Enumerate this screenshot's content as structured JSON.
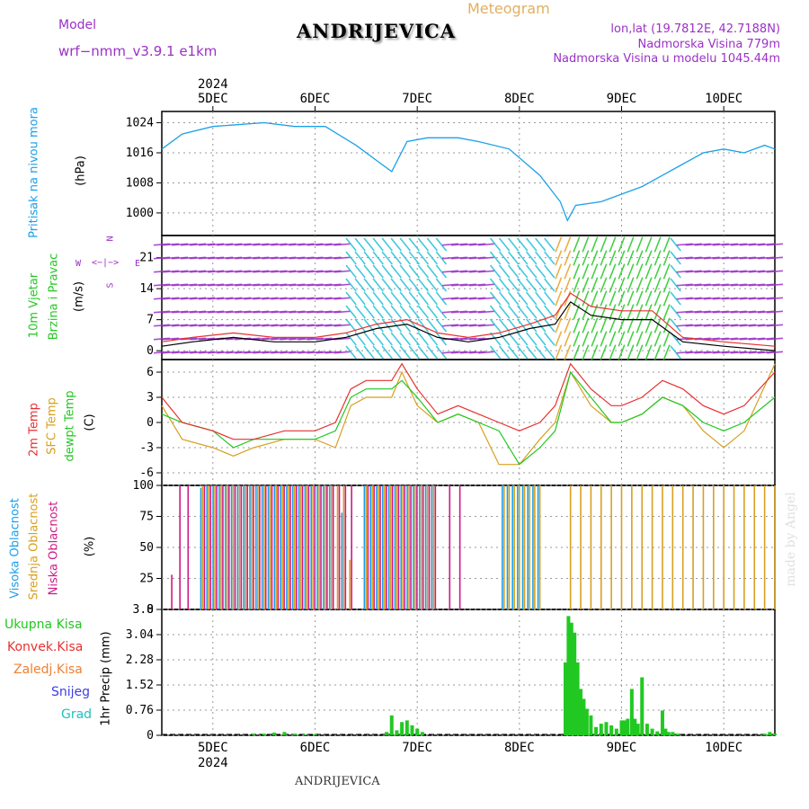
{
  "header": {
    "model_label": "Model",
    "model_name": "wrf−nmm_v3.9.1  e1km",
    "title": "ANDRIJEVICA",
    "meteogram_label": "Meteogram",
    "lonlat": "lon,lat (19.7812E, 42.7188N)",
    "elevation": "Nadmorska Visina 779m",
    "model_elevation": "Nadmorska Visina u modelu 1045.44m",
    "watermark": "made by Angel",
    "footer_title": "ANDRIJEVICA"
  },
  "time_axis": {
    "year": "2024",
    "days": [
      "5DEC",
      "6DEC",
      "7DEC",
      "8DEC",
      "9DEC",
      "10DEC"
    ]
  },
  "panel_labels": {
    "pressure": {
      "name": "Pritisak na nivou mora",
      "unit": "(hPa)"
    },
    "wind": {
      "name1": "10m Vjetar",
      "name2": "Brzina i Pravac",
      "unit": "(m/s)",
      "compass_n": "N",
      "compass_s": "S",
      "compass_w": "W",
      "compass_e": "E"
    },
    "temp": {
      "name1": "2m Temp",
      "name2": "SFC Temp",
      "name3": "dewpt Temp",
      "unit": "(C)"
    },
    "cloud": {
      "name1": "Visoka Oblacnost",
      "name2": "Srednja Oblacnost",
      "name3": "Niska Oblacnost",
      "unit": "(%)"
    },
    "precip": {
      "name1": "Ukupna Kisa",
      "name2": "Konvek.Kisa",
      "name3": "Zaledj.Kisa",
      "name4": "Snijeg",
      "name5": "Grad",
      "unit": "1hr Precip (mm)"
    }
  },
  "colors": {
    "pressure": "#1ca0e8",
    "wind_speed": "#000000",
    "wind_gust": "#e83030",
    "t2m": "#e83030",
    "tsfc": "#d8a020",
    "dewpt": "#22c822",
    "cloud_high": "#1ca0e8",
    "cloud_mid": "#d8a020",
    "cloud_low": "#cc1a88",
    "precip_total": "#22c822",
    "precip_conv": "#e83030",
    "precip_frz": "#f08030",
    "precip_snow": "#4040e0",
    "precip_grad": "#20c0c0",
    "label_pressure": "#1ca0e8",
    "label_wind": "#22c822",
    "label_model": "#9b30c8"
  },
  "chart_data": [
    {
      "type": "line",
      "title": "Pritisak na nivou mora",
      "ylabel": "(hPa)",
      "yticks": [
        "1000",
        "1008",
        "1016",
        "1024"
      ],
      "ylim": [
        994,
        1027
      ],
      "grid": true,
      "x": [
        4.5,
        4.7,
        5.0,
        5.5,
        5.8,
        6.1,
        6.4,
        6.6,
        6.75,
        6.9,
        7.1,
        7.4,
        7.6,
        7.9,
        8.2,
        8.4,
        8.47,
        8.55,
        8.8,
        9.0,
        9.2,
        9.4,
        9.6,
        9.8,
        10.0,
        10.2,
        10.4,
        10.5
      ],
      "series": [
        {
          "values": [
            1017,
            1021,
            1023,
            1024,
            1023,
            1023,
            1018,
            1014,
            1011,
            1019,
            1020,
            1020,
            1019,
            1017,
            1010,
            1003,
            998,
            1002,
            1003,
            1005,
            1007,
            1010,
            1013,
            1016,
            1017,
            1016,
            1018,
            1017
          ]
        }
      ]
    },
    {
      "type": "line",
      "title": "10m Vjetar Brzina i Pravac",
      "ylabel": "(m/s)",
      "yticks": [
        "0",
        "7",
        "14",
        "21"
      ],
      "ylim": [
        -2,
        26
      ],
      "grid": true,
      "x": [
        4.5,
        4.8,
        5.2,
        5.6,
        6.0,
        6.3,
        6.6,
        6.9,
        7.2,
        7.5,
        7.8,
        8.1,
        8.35,
        8.5,
        8.7,
        9.0,
        9.3,
        9.6,
        10.0,
        10.5
      ],
      "series": [
        {
          "values": [
            1,
            2,
            3,
            2,
            2,
            3,
            5,
            6,
            3,
            2,
            3,
            5,
            6,
            11,
            8,
            7,
            7,
            2,
            1,
            0
          ]
        },
        {
          "values": [
            2,
            3,
            4,
            3,
            3,
            4,
            6,
            7,
            4,
            3,
            4,
            6,
            8,
            13,
            10,
            9,
            9,
            3,
            2,
            1
          ]
        }
      ]
    },
    {
      "type": "line",
      "title": "Temp",
      "ylabel": "(C)",
      "yticks": [
        "-6",
        "-3",
        "0",
        "3",
        "6"
      ],
      "ylim": [
        -7.5,
        7.5
      ],
      "grid": true,
      "x": [
        4.5,
        4.7,
        5.0,
        5.2,
        5.4,
        5.7,
        6.0,
        6.2,
        6.35,
        6.5,
        6.75,
        6.85,
        7.0,
        7.2,
        7.4,
        7.6,
        7.8,
        8.0,
        8.2,
        8.35,
        8.5,
        8.7,
        8.9,
        9.0,
        9.2,
        9.4,
        9.6,
        9.8,
        10.0,
        10.2,
        10.5
      ],
      "series": [
        {
          "name": "2m Temp",
          "values": [
            3,
            0,
            -1,
            -2,
            -2,
            -1,
            -1,
            0,
            4,
            5,
            5,
            7,
            4,
            1,
            2,
            1,
            0,
            -1,
            0,
            2,
            7,
            4,
            2,
            2,
            3,
            5,
            4,
            2,
            1,
            2,
            6
          ]
        },
        {
          "name": "SFC Temp",
          "values": [
            2,
            -2,
            -3,
            -4,
            -3,
            -2,
            -2,
            -3,
            2,
            3,
            3,
            6,
            2,
            0,
            1,
            0,
            -5,
            -5,
            -2,
            0,
            6,
            2,
            0,
            0,
            1,
            3,
            2,
            -1,
            -3,
            -1,
            7
          ]
        },
        {
          "name": "dewpt Temp",
          "values": [
            1,
            0,
            -1,
            -3,
            -2,
            -2,
            -2,
            -1,
            3,
            4,
            4,
            5,
            3,
            0,
            1,
            0,
            -1,
            -5,
            -3,
            -1,
            6,
            3,
            0,
            0,
            1,
            3,
            2,
            0,
            -1,
            0,
            3
          ]
        }
      ]
    },
    {
      "type": "bar",
      "title": "Oblacnost",
      "ylabel": "(%)",
      "yticks": [
        "0",
        "25",
        "50",
        "75",
        "100"
      ],
      "ylim": [
        0,
        100
      ],
      "grid": true,
      "x": [
        4.58,
        4.66,
        4.74,
        4.9,
        4.96,
        5.02,
        5.08,
        5.14,
        5.2,
        5.26,
        5.32,
        5.38,
        5.44,
        5.5,
        5.56,
        5.62,
        5.68,
        5.74,
        5.8,
        5.86,
        5.92,
        5.98,
        6.04,
        6.1,
        6.16,
        6.22,
        6.28,
        6.34,
        6.5,
        6.56,
        6.62,
        6.68,
        6.74,
        6.8,
        6.86,
        6.92,
        6.98,
        7.04,
        7.1,
        7.16,
        7.3,
        7.4,
        7.5,
        7.85,
        7.9,
        7.95,
        8.0,
        8.05,
        8.1,
        8.15,
        8.2,
        8.5,
        8.6,
        8.7,
        8.8,
        8.9,
        9.0,
        9.1,
        9.2,
        9.3,
        9.4,
        9.5,
        9.6,
        9.7,
        9.8,
        9.9,
        10.0,
        10.1,
        10.2,
        10.3,
        10.4,
        10.5
      ],
      "series": [
        {
          "name": "Visoka Oblacnost",
          "values": [
            0,
            0,
            0,
            98,
            100,
            100,
            100,
            100,
            100,
            100,
            100,
            100,
            100,
            100,
            100,
            100,
            100,
            100,
            100,
            100,
            100,
            100,
            100,
            100,
            100,
            0,
            78,
            0,
            100,
            100,
            100,
            100,
            100,
            100,
            100,
            100,
            100,
            100,
            100,
            100,
            0,
            0,
            0,
            100,
            100,
            100,
            100,
            100,
            100,
            100,
            100,
            0,
            0,
            0,
            0,
            0,
            0,
            0,
            0,
            0,
            0,
            0,
            0,
            0,
            0,
            0,
            0,
            0,
            0,
            0,
            0,
            0
          ]
        },
        {
          "name": "Srednja Oblacnost",
          "values": [
            0,
            0,
            0,
            100,
            100,
            100,
            100,
            100,
            100,
            100,
            100,
            100,
            100,
            100,
            100,
            100,
            100,
            100,
            100,
            100,
            100,
            100,
            100,
            100,
            100,
            100,
            100,
            40,
            100,
            100,
            100,
            100,
            100,
            100,
            100,
            100,
            100,
            100,
            100,
            100,
            0,
            0,
            0,
            100,
            100,
            100,
            100,
            100,
            100,
            100,
            100,
            100,
            100,
            100,
            100,
            100,
            100,
            100,
            100,
            100,
            100,
            100,
            100,
            100,
            100,
            100,
            100,
            100,
            100,
            100,
            100,
            100
          ]
        },
        {
          "name": "Niska Oblacnost",
          "values": [
            28,
            100,
            100,
            100,
            100,
            100,
            100,
            100,
            100,
            100,
            100,
            100,
            100,
            100,
            100,
            100,
            100,
            100,
            100,
            100,
            100,
            100,
            100,
            100,
            100,
            100,
            100,
            100,
            100,
            100,
            100,
            100,
            100,
            100,
            100,
            100,
            100,
            100,
            100,
            100,
            100,
            100,
            0,
            0,
            0,
            0,
            0,
            0,
            0,
            0,
            0,
            0,
            0,
            0,
            0,
            0,
            0,
            0,
            0,
            0,
            0,
            0,
            0,
            0,
            0,
            0,
            0,
            0,
            0,
            0,
            0,
            0
          ]
        }
      ]
    },
    {
      "type": "bar",
      "title": "1hr Precip",
      "ylabel": "1hr Precip (mm)",
      "yticks": [
        "0",
        "0.76",
        "1.52",
        "2.28",
        "3.04",
        "3.8"
      ],
      "ylim": [
        0,
        3.8
      ],
      "grid": true,
      "x": [
        5.4,
        5.5,
        5.6,
        5.7,
        5.8,
        5.9,
        6.0,
        6.7,
        6.75,
        6.8,
        6.85,
        6.9,
        6.95,
        7.0,
        7.05,
        8.45,
        8.48,
        8.51,
        8.54,
        8.57,
        8.6,
        8.63,
        8.66,
        8.7,
        8.75,
        8.8,
        8.85,
        8.9,
        8.95,
        9.0,
        9.03,
        9.06,
        9.1,
        9.13,
        9.16,
        9.2,
        9.25,
        9.3,
        9.35,
        9.4,
        9.43,
        9.46,
        9.5,
        9.55,
        10.4,
        10.45,
        10.5
      ],
      "series": [
        {
          "name": "Ukupna Kisa",
          "values": [
            0.03,
            0.05,
            0.08,
            0.1,
            0.05,
            0.03,
            0.03,
            0.1,
            0.6,
            0.15,
            0.4,
            0.45,
            0.3,
            0.2,
            0.1,
            2.2,
            3.6,
            3.4,
            3.1,
            2.2,
            1.4,
            1.1,
            0.8,
            0.6,
            0.25,
            0.35,
            0.4,
            0.3,
            0.2,
            0.45,
            0.45,
            0.5,
            1.4,
            0.5,
            0.35,
            1.75,
            0.35,
            0.2,
            0.12,
            0.75,
            0.2,
            0.1,
            0.1,
            0.05,
            0.05,
            0.1,
            0.05
          ]
        }
      ]
    }
  ]
}
